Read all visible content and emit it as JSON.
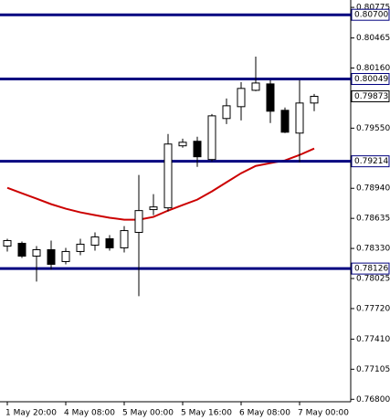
{
  "chart_data": {
    "type": "candlestick",
    "categories": [
      "1 May 20:00",
      null,
      null,
      null,
      "4 May 08:00",
      null,
      null,
      null,
      "5 May 00:00",
      null,
      null,
      null,
      "5 May 16:00",
      null,
      null,
      null,
      "6 May 08:00",
      null,
      null,
      null,
      "7 May 00:00",
      null
    ],
    "open": [
      0.78354,
      0.78382,
      0.78252,
      0.78317,
      0.78197,
      0.78299,
      0.78363,
      0.78428,
      0.78336,
      0.78493,
      0.78724,
      0.78742,
      0.79371,
      0.79417,
      0.79232,
      0.79648,
      0.79768,
      0.79934,
      0.79999,
      0.79731,
      0.795,
      0.79805
    ],
    "high": [
      0.78428,
      0.784,
      0.78354,
      0.7841,
      0.78336,
      0.78428,
      0.78493,
      0.78465,
      0.78557,
      0.79075,
      0.78881,
      0.79491,
      0.79444,
      0.79463,
      0.79694,
      0.79851,
      0.80017,
      0.80276,
      0.80036,
      0.79759,
      0.80036,
      0.79897
    ],
    "low": [
      0.78299,
      0.78234,
      0.77994,
      0.78114,
      0.78169,
      0.78262,
      0.78308,
      0.78308,
      0.78289,
      0.77846,
      0.78668,
      0.78705,
      0.79352,
      0.79158,
      0.79213,
      0.79592,
      0.79629,
      0.79925,
      0.79602,
      0.795,
      0.79204,
      0.79722
    ],
    "close": [
      0.7841,
      0.78252,
      0.78317,
      0.78169,
      0.78299,
      0.78373,
      0.78447,
      0.78336,
      0.78511,
      0.78714,
      0.78751,
      0.79389,
      0.79407,
      0.7926,
      0.79675,
      0.79777,
      0.79953,
      0.80008,
      0.79722,
      0.79509,
      0.79805,
      0.79873
    ],
    "up_color": "#ffffff",
    "down_color": "#000000",
    "outline_color": "#000000",
    "moving_average": {
      "color": "#cc0000",
      "values": [
        0.78945,
        0.7889,
        0.78835,
        0.78779,
        0.78733,
        0.78696,
        0.78668,
        0.78641,
        0.78622,
        0.78622,
        0.7865,
        0.78714,
        0.7877,
        0.78825,
        0.78909,
        0.79001,
        0.79093,
        0.79167,
        0.79195,
        0.79223,
        0.79278,
        0.79343
      ]
    },
    "levels": [
      {
        "value": 0.807,
        "label": "0.80700"
      },
      0.80049,
      0.79214,
      0.78126
    ],
    "level_color": "#000080",
    "price_label": 0.79873,
    "ylim": [
      0.76775,
      0.8085
    ],
    "yticks": [
      0.80775,
      0.80465,
      {
        "value": 0.8016,
        "label": "0.80160"
      },
      {
        "value": 0.7955,
        "label": "0.79550"
      },
      {
        "value": 0.7894,
        "label": "0.78940"
      },
      0.78635,
      {
        "value": 0.7833,
        "label": "0.78330"
      },
      0.78025,
      {
        "value": 0.7772,
        "label": "0.77720"
      },
      {
        "value": 0.7741,
        "label": "0.77410"
      },
      0.77105,
      {
        "value": 0.768,
        "label": "0.76800"
      }
    ]
  }
}
